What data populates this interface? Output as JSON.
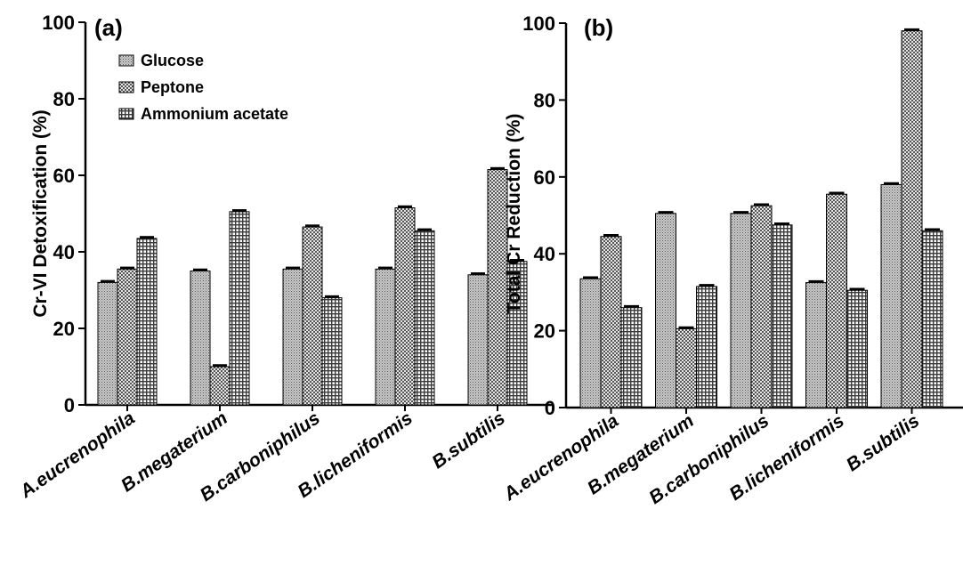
{
  "chart_data": [
    {
      "type": "bar",
      "panel_label": "(a)",
      "ylabel": "Cr-VI Detoxification (%)",
      "xlabel": "",
      "ylim": [
        0,
        100
      ],
      "yticks": [
        0,
        20,
        40,
        60,
        80,
        100
      ],
      "categories": [
        "A.eucrenophila",
        "B.megaterium",
        "B.carboniphilus",
        "B.licheniformis",
        "B.subtilis"
      ],
      "legend_position": "top-left",
      "error_bars": true,
      "series": [
        {
          "name": "Glucose",
          "pattern": "dots",
          "values": [
            32,
            35,
            35.5,
            35.5,
            34
          ]
        },
        {
          "name": "Peptone",
          "pattern": "checker",
          "values": [
            35.5,
            10,
            46.5,
            51.5,
            61.5
          ]
        },
        {
          "name": "Ammonium acetate",
          "pattern": "grid",
          "values": [
            43.5,
            50.5,
            28,
            45.5,
            37.5
          ]
        }
      ]
    },
    {
      "type": "bar",
      "panel_label": "(b)",
      "ylabel": "Total Cr Reduction (%)",
      "xlabel": "",
      "ylim": [
        0,
        100
      ],
      "yticks": [
        0,
        20,
        40,
        60,
        80,
        100
      ],
      "categories": [
        "A.eucrenophila",
        "B.megaterium",
        "B.carboniphilus",
        "B.licheniformis",
        "B.subtilis"
      ],
      "error_bars": true,
      "series": [
        {
          "name": "Glucose",
          "pattern": "dots",
          "values": [
            33.5,
            50.5,
            50.5,
            32.5,
            58
          ]
        },
        {
          "name": "Peptone",
          "pattern": "checker",
          "values": [
            44.5,
            20.5,
            52.5,
            55.5,
            98
          ]
        },
        {
          "name": "Ammonium acetate",
          "pattern": "grid",
          "values": [
            26,
            31.5,
            47.5,
            30.5,
            46
          ]
        }
      ]
    }
  ]
}
